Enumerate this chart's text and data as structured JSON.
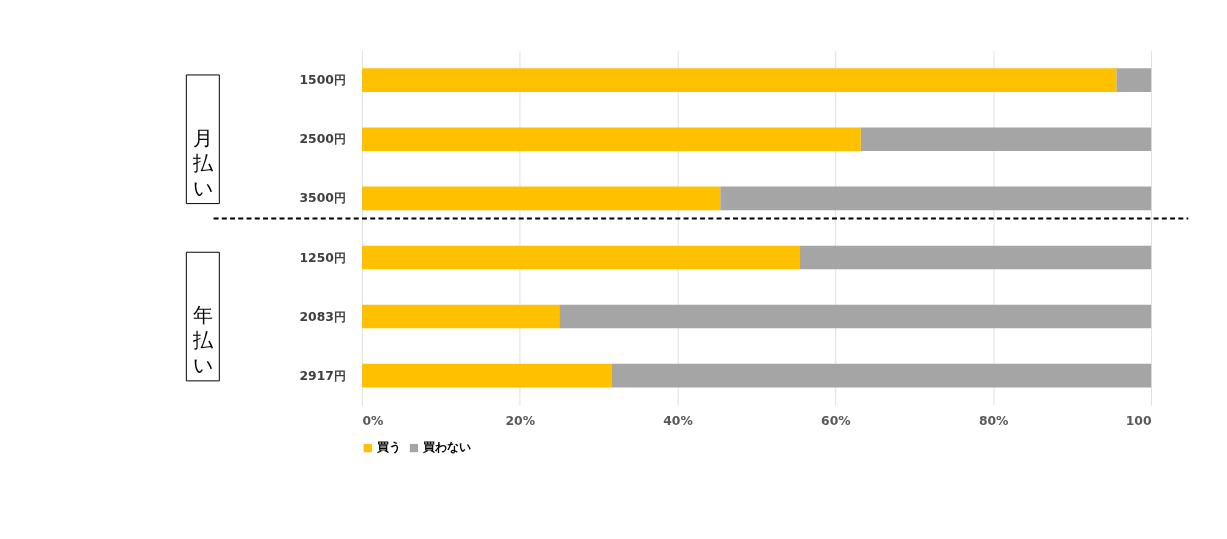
{
  "chart_data": {
    "type": "bar",
    "orientation": "horizontal",
    "stacked": true,
    "categories": [
      "1500円",
      "2500円",
      "3500円",
      "1250円",
      "2083円",
      "2917円"
    ],
    "series": [
      {
        "name": "買う",
        "color": "#ffc000",
        "values": [
          95.6,
          63.2,
          45.4,
          55.5,
          25.0,
          31.6
        ]
      },
      {
        "name": "買わない",
        "color": "#a5a5a5",
        "values": [
          4.4,
          36.8,
          54.6,
          44.5,
          75.0,
          68.4
        ]
      }
    ],
    "xlim": [
      0,
      100
    ],
    "xticks": [
      {
        "value": 0,
        "label": "0%"
      },
      {
        "value": 20,
        "label": "20%"
      },
      {
        "value": 40,
        "label": "40%"
      },
      {
        "value": 60,
        "label": "60%"
      },
      {
        "value": 80,
        "label": "80%"
      },
      {
        "value": 100,
        "label": "100"
      }
    ],
    "grid": "x",
    "legend": "bottom",
    "ref_lines": [
      {
        "axis": "y",
        "value": "3500円",
        "line_style": "dashed",
        "color": "#000000"
      }
    ],
    "annotations": [
      "月払い",
      "年払い"
    ]
  }
}
